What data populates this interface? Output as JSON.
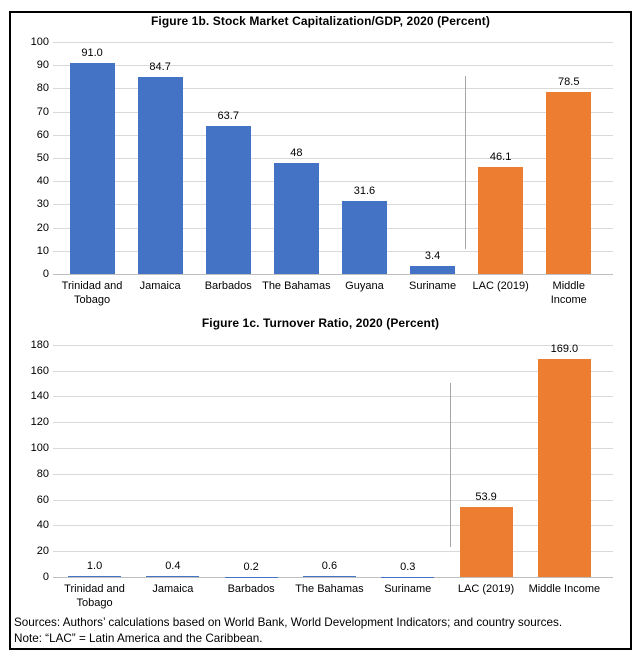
{
  "figure": {
    "footer": {
      "sources": "Sources: Authors’ calculations based on World Bank, World Development Indicators; and country sources.",
      "note": "Note: “LAC” = Latin America and the Caribbean."
    },
    "colors": {
      "bar_blue": "#4472C4",
      "bar_orange": "#ED7D31",
      "gridline": "#D9D9D9",
      "axis_line": "#BFBFBF",
      "separator_line": "#A6A6A6",
      "border": "#000000",
      "text": "#000000"
    }
  },
  "chart_data": [
    {
      "type": "bar",
      "title": "Figure 1b. Stock Market Capitalization/GDP, 2020 (Percent)",
      "categories": [
        "Trinidad and Tobago",
        "Jamaica",
        "Barbados",
        "The Bahamas",
        "Guyana",
        "Suriname",
        "LAC (2019)",
        "Middle Income"
      ],
      "category_lines": [
        [
          "Trinidad and",
          "Tobago"
        ],
        [
          "Jamaica"
        ],
        [
          "Barbados"
        ],
        [
          "The Bahamas"
        ],
        [
          "Guyana"
        ],
        [
          "Suriname"
        ],
        [
          "LAC (2019)"
        ],
        [
          "Middle",
          "Income"
        ]
      ],
      "values": [
        91.0,
        84.7,
        63.7,
        48,
        31.6,
        3.4,
        46.1,
        78.5
      ],
      "value_labels": [
        "91.0",
        "84.7",
        "63.7",
        "48",
        "31.6",
        "3.4",
        "46.1",
        "78.5"
      ],
      "bar_colors": [
        "#4472C4",
        "#4472C4",
        "#4472C4",
        "#4472C4",
        "#4472C4",
        "#4472C4",
        "#ED7D31",
        "#ED7D31"
      ],
      "xlabel": "",
      "ylabel": "",
      "ylim": [
        0,
        100
      ],
      "ystep": 10,
      "grid": true,
      "legend": null,
      "separator_after_category": "Suriname"
    },
    {
      "type": "bar",
      "title": "Figure 1c. Turnover Ratio, 2020 (Percent)",
      "categories": [
        "Trinidad and Tobago",
        "Jamaica",
        "Barbados",
        "The Bahamas",
        "Suriname",
        "LAC (2019)",
        "Middle Income"
      ],
      "category_lines": [
        [
          "Trinidad and",
          "Tobago"
        ],
        [
          "Jamaica"
        ],
        [
          "Barbados"
        ],
        [
          "The Bahamas"
        ],
        [
          "Suriname"
        ],
        [
          "LAC (2019)"
        ],
        [
          "Middle Income"
        ]
      ],
      "values": [
        1.0,
        0.4,
        0.2,
        0.6,
        0.3,
        53.9,
        169.0
      ],
      "value_labels": [
        "1.0",
        "0.4",
        "0.2",
        "0.6",
        "0.3",
        "53.9",
        "169.0"
      ],
      "bar_colors": [
        "#4472C4",
        "#4472C4",
        "#4472C4",
        "#4472C4",
        "#4472C4",
        "#ED7D31",
        "#ED7D31"
      ],
      "xlabel": "",
      "ylabel": "",
      "ylim": [
        0,
        180
      ],
      "ystep": 20,
      "grid": true,
      "legend": null,
      "separator_after_category": "Suriname"
    }
  ]
}
